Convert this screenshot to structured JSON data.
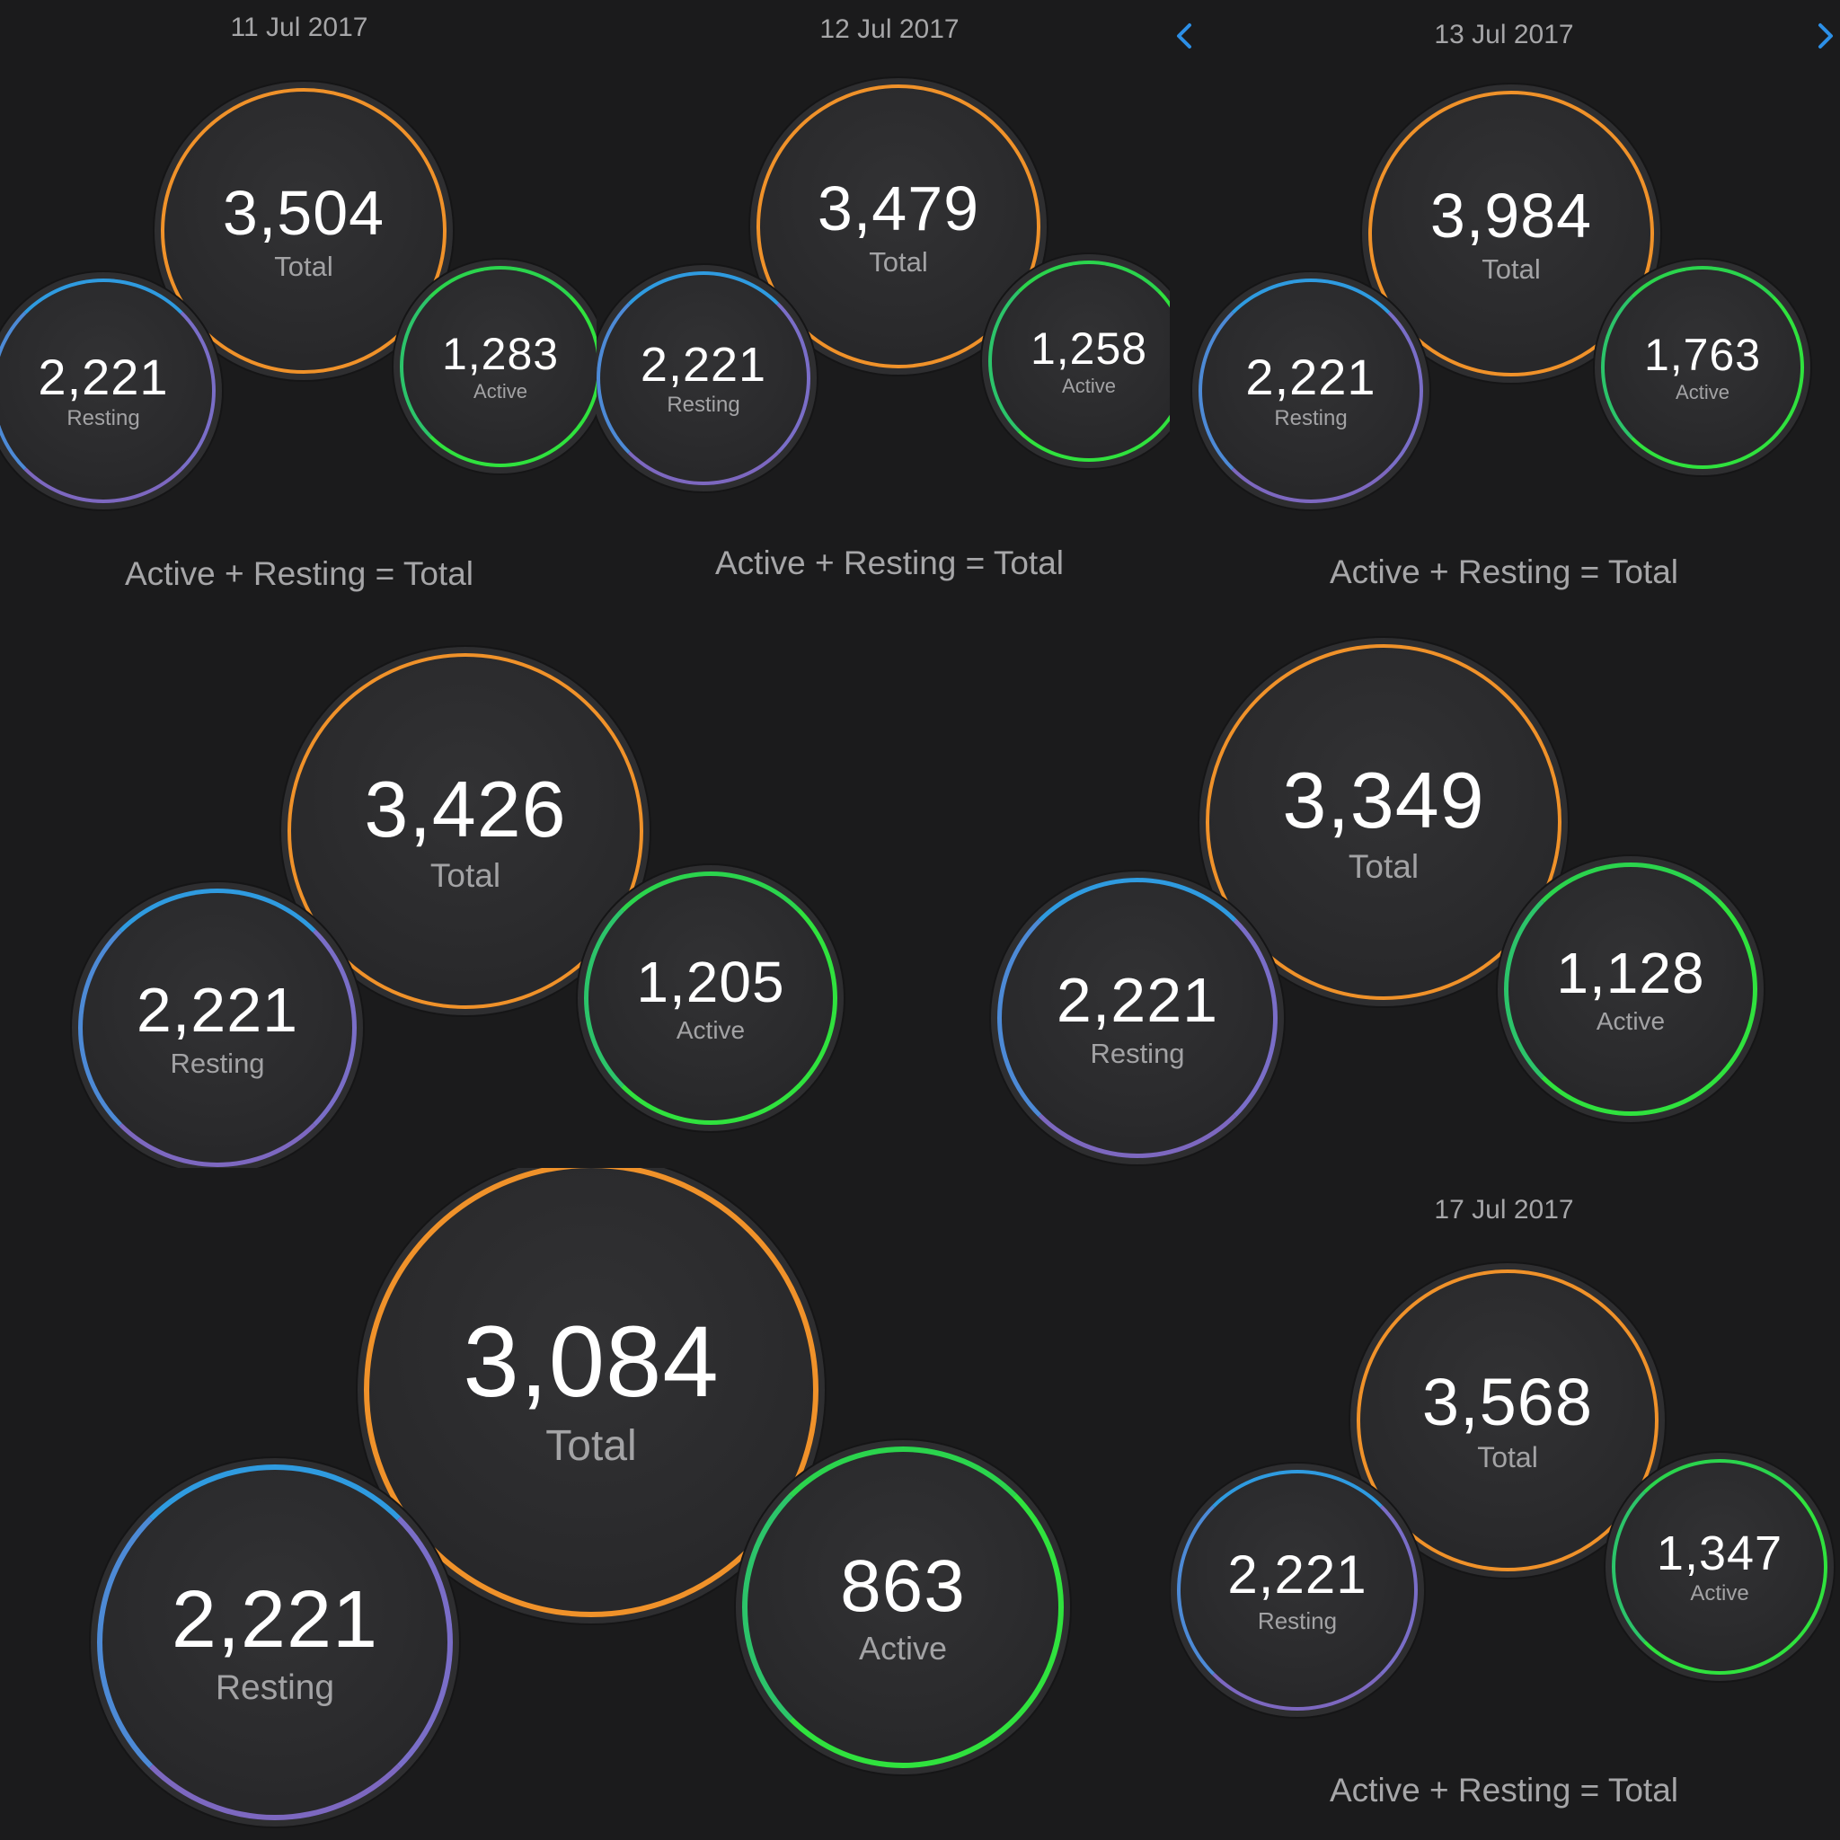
{
  "nav": {
    "prev_icon": "chevron-left-icon",
    "next_icon": "chevron-right-icon",
    "accent": "#2c8fe6"
  },
  "colors": {
    "background": "#1b1b1c",
    "total_ring": "#f0922a",
    "active_ring": "#30e23e",
    "resting_ring_top": "#2f9be0",
    "resting_ring_bottom": "#7d68c0",
    "muted_text": "#a6a6a8"
  },
  "panels": [
    {
      "date": "11 Jul 2017",
      "total": "3,504",
      "total_label": "Total",
      "resting": "2,221",
      "resting_label": "Resting",
      "active": "1,283",
      "active_label": "Active",
      "formula": "Active + Resting = Total"
    },
    {
      "date": "12 Jul 2017",
      "total": "3,479",
      "total_label": "Total",
      "resting": "2,221",
      "resting_label": "Resting",
      "active": "1,258",
      "active_label": "Active",
      "formula": "Active + Resting = Total"
    },
    {
      "date": "13 Jul 2017",
      "total": "3,984",
      "total_label": "Total",
      "resting": "2,221",
      "resting_label": "Resting",
      "active": "1,763",
      "active_label": "Active",
      "formula": "Active + Resting = Total"
    },
    {
      "total": "3,426",
      "total_label": "Total",
      "resting": "2,221",
      "resting_label": "Resting",
      "active": "1,205",
      "active_label": "Active"
    },
    {
      "total": "3,349",
      "total_label": "Total",
      "resting": "2,221",
      "resting_label": "Resting",
      "active": "1,128",
      "active_label": "Active"
    },
    {
      "total": "3,084",
      "total_label": "Total",
      "resting": "2,221",
      "resting_label": "Resting",
      "active": "863",
      "active_label": "Active"
    },
    {
      "date": "17 Jul 2017",
      "total": "3,568",
      "total_label": "Total",
      "resting": "2,221",
      "resting_label": "Resting",
      "active": "1,347",
      "active_label": "Active",
      "formula": "Active + Resting = Total"
    }
  ]
}
